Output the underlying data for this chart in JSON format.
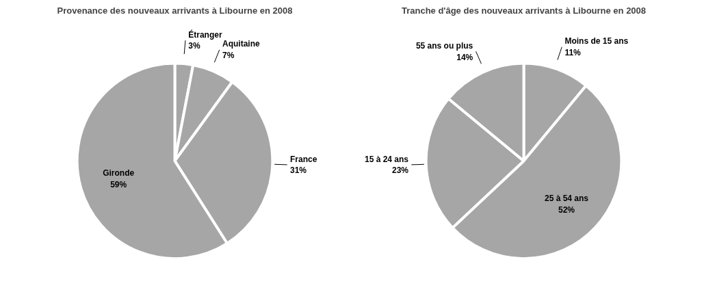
{
  "chart_data": [
    {
      "type": "pie",
      "title": "Provenance des nouveaux arrivants à Libourne en 2008",
      "categories": [
        "Étranger",
        "Aquitaine",
        "France",
        "Gironde"
      ],
      "values": [
        3,
        7,
        31,
        59
      ],
      "value_labels": [
        "3%",
        "7%",
        "31%",
        "59%"
      ],
      "colors": [
        "#a6a6a6",
        "#a6a6a6",
        "#a6a6a6",
        "#a6a6a6"
      ]
    },
    {
      "type": "pie",
      "title": "Tranche d'âge des nouveaux arrivants à Libourne en 2008",
      "categories": [
        "Moins de 15 ans",
        "25 à 54 ans",
        "15 à 24 ans",
        "55 ans ou plus"
      ],
      "values": [
        11,
        52,
        23,
        14
      ],
      "value_labels": [
        "11%",
        "52%",
        "23%",
        "14%"
      ],
      "colors": [
        "#a6a6a6",
        "#a6a6a6",
        "#a6a6a6",
        "#a6a6a6"
      ]
    }
  ]
}
